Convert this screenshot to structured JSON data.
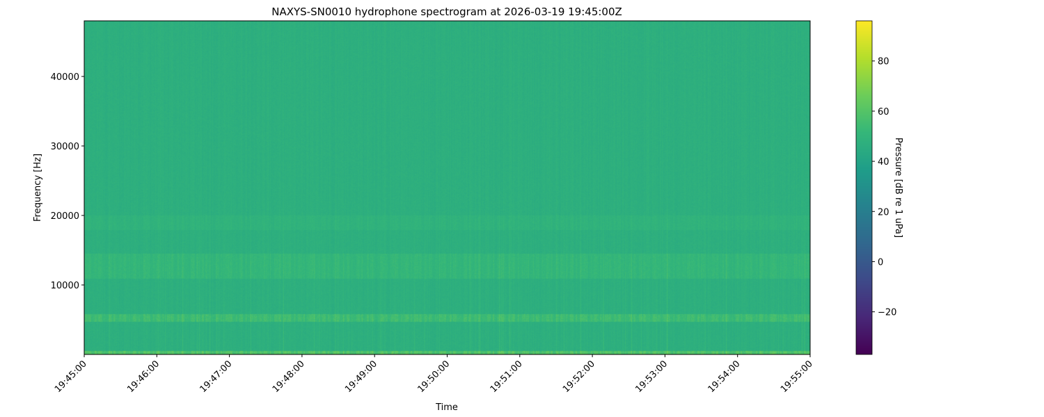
{
  "chart_data": {
    "type": "heatmap",
    "title": "NAXYS-SN0010 hydrophone spectrogram at 2026-03-19 19:45:00Z",
    "xlabel": "Time",
    "ylabel": "Frequency [Hz]",
    "xticks": [
      "19:45:00",
      "19:46:00",
      "19:47:00",
      "19:48:00",
      "19:49:00",
      "19:50:00",
      "19:51:00",
      "19:52:00",
      "19:53:00",
      "19:54:00",
      "19:55:00"
    ],
    "yticks": [
      10000,
      20000,
      30000,
      40000
    ],
    "ytick_labels": [
      "10000",
      "20000",
      "30000",
      "40000"
    ],
    "ylim": [
      0,
      48000
    ],
    "colormap": "viridis",
    "colorbar": {
      "label": "Pressure [dB re 1 uPa]",
      "clim": [
        -37,
        96
      ],
      "ticks": [
        -20,
        0,
        20,
        40,
        60,
        80
      ],
      "tick_labels": [
        "−20",
        "0",
        "20",
        "40",
        "60",
        "80"
      ]
    },
    "background_level_db": 47,
    "bands": [
      {
        "freq_hz": [
          0,
          500
        ],
        "level_db": 65
      },
      {
        "freq_hz": [
          4800,
          5800
        ],
        "level_db": 58
      },
      {
        "freq_hz": [
          11000,
          14500
        ],
        "level_db": 53
      },
      {
        "freq_hz": [
          18000,
          20000
        ],
        "level_db": 50
      }
    ]
  }
}
